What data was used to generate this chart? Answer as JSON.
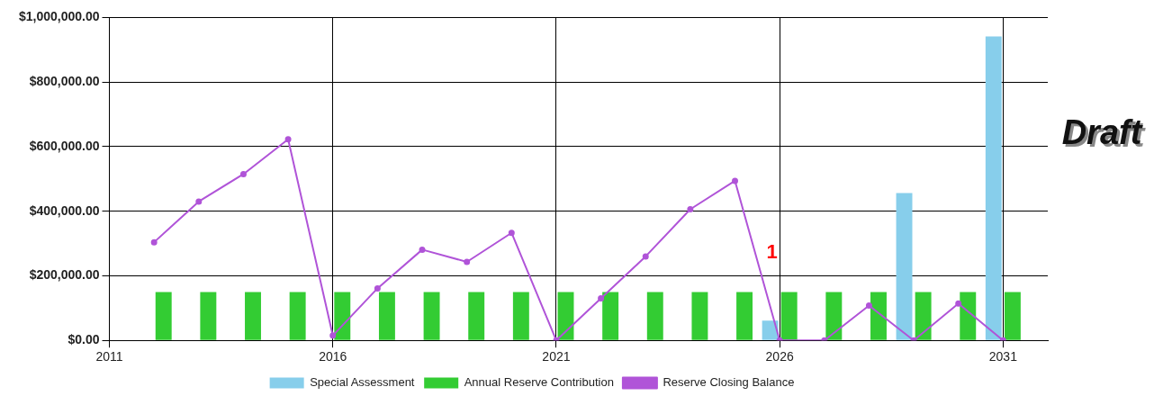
{
  "chart_data": {
    "type": "bar",
    "x": [
      2012,
      2013,
      2014,
      2015,
      2016,
      2017,
      2018,
      2019,
      2020,
      2021,
      2022,
      2023,
      2024,
      2025,
      2026,
      2027,
      2028,
      2029,
      2030,
      2031
    ],
    "series": [
      {
        "name": "Special Assessment",
        "color": "#87ceeb",
        "values": [
          null,
          null,
          null,
          null,
          null,
          null,
          null,
          null,
          null,
          null,
          null,
          null,
          null,
          null,
          61000,
          null,
          null,
          456000,
          null,
          941000
        ]
      },
      {
        "name": "Annual Reserve Contribution",
        "color": "#33cc33",
        "values": [
          150000,
          150000,
          150000,
          150000,
          150000,
          150000,
          150000,
          150000,
          150000,
          150000,
          150000,
          150000,
          150000,
          150000,
          150000,
          150000,
          150000,
          150000,
          150000,
          150000
        ]
      },
      {
        "name": "Reserve Closing Balance",
        "type": "line",
        "color": "#b054d8",
        "values": [
          304000,
          430000,
          515000,
          623000,
          15000,
          161000,
          281000,
          243000,
          333000,
          0,
          130000,
          260000,
          406000,
          494000,
          0,
          0,
          108000,
          0,
          114000,
          0
        ]
      }
    ],
    "xlim": [
      2011,
      2032
    ],
    "xticks": [
      2011,
      2016,
      2021,
      2026,
      2031
    ],
    "ylim": [
      0,
      1000000
    ],
    "yticks": [
      {
        "value": 0,
        "label": "$0.00"
      },
      {
        "value": 200000,
        "label": "$200,000.00"
      },
      {
        "value": 400000,
        "label": "$400,000.00"
      },
      {
        "value": 600000,
        "label": "$600,000.00"
      },
      {
        "value": 800000,
        "label": "$800,000.00"
      },
      {
        "value": 1000000,
        "label": "$1,000,000.00"
      }
    ],
    "grid": true,
    "legend": "bottom",
    "marker": "circle",
    "line_style": "solid",
    "annotations": [
      "1",
      "Draft"
    ]
  }
}
